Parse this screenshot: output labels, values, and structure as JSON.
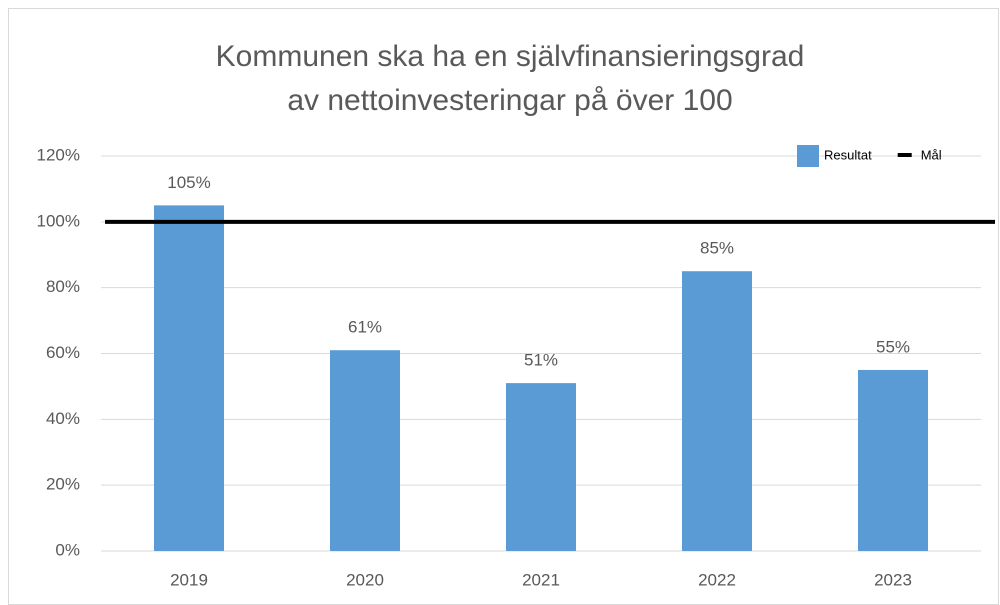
{
  "chart_data": {
    "type": "bar",
    "title": [
      "Kommunen ska ha en självfinansieringsgrad",
      "av nettoinvesteringar på över 100"
    ],
    "categories": [
      "2019",
      "2020",
      "2021",
      "2022",
      "2023"
    ],
    "series": [
      {
        "name": "Resultat",
        "type": "bar",
        "color": "#5b9bd5",
        "values": [
          105,
          61,
          51,
          85,
          55
        ],
        "value_labels": [
          "105%",
          "61%",
          "51%",
          "85%",
          "55%"
        ]
      },
      {
        "name": "Mål",
        "type": "line",
        "color": "#000000",
        "values": [
          100,
          100,
          100,
          100,
          100
        ]
      }
    ],
    "ylim": [
      0,
      120
    ],
    "yticks": [
      {
        "value": 0,
        "label": "0%"
      },
      {
        "value": 20,
        "label": "20%"
      },
      {
        "value": 40,
        "label": "40%"
      },
      {
        "value": 60,
        "label": "60%"
      },
      {
        "value": 80,
        "label": "80%"
      },
      {
        "value": 100,
        "label": "100%"
      },
      {
        "value": 120,
        "label": "120%"
      }
    ],
    "grid": true,
    "legend": "top-right"
  }
}
